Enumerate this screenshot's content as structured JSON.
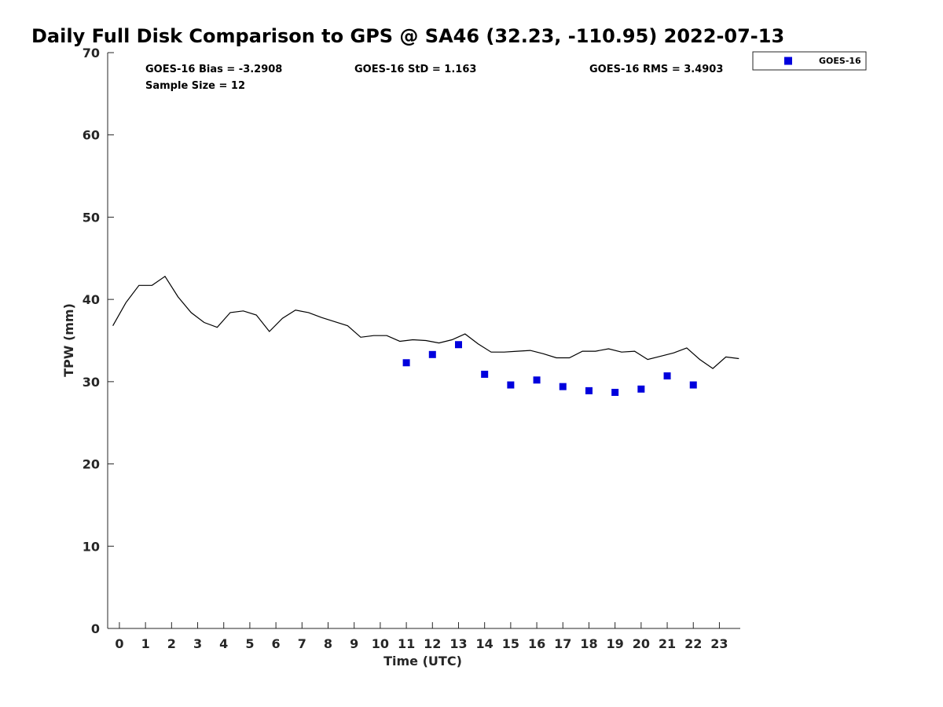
{
  "chart_data": {
    "type": "line",
    "title": "Daily Full Disk Comparison to GPS @ SA46 (32.23, -110.95) 2022-07-13",
    "xlabel": "Time (UTC)",
    "ylabel": "TPW (mm)",
    "xlim": [
      -0.45,
      23.8
    ],
    "ylim": [
      0,
      70
    ],
    "x_ticks": [
      "0",
      "1",
      "2",
      "3",
      "4",
      "5",
      "6",
      "7",
      "8",
      "9",
      "10",
      "11",
      "12",
      "13",
      "14",
      "15",
      "16",
      "17",
      "18",
      "19",
      "20",
      "21",
      "22",
      "23"
    ],
    "y_ticks": [
      "0",
      "10",
      "20",
      "30",
      "40",
      "50",
      "60",
      "70"
    ],
    "grid": false,
    "legend_position": "top-right, outside plot",
    "stats": {
      "bias": "GOES-16 Bias = -3.2908",
      "std": "GOES-16 StD = 1.163",
      "rms": "GOES-16 RMS = 3.4903",
      "sample": "Sample Size = 12"
    },
    "series": [
      {
        "style": "line",
        "color": "#000000",
        "x": [
          -0.25,
          0.25,
          0.75,
          1.25,
          1.75,
          2.25,
          2.75,
          3.25,
          3.75,
          4.25,
          4.75,
          5.25,
          5.75,
          6.25,
          6.75,
          7.25,
          7.75,
          8.25,
          8.75,
          9.25,
          9.75,
          10.25,
          10.75,
          11.25,
          11.75,
          12.25,
          12.75,
          13.25,
          13.75,
          14.25,
          14.75,
          15.25,
          15.75,
          16.25,
          16.75,
          17.25,
          17.75,
          18.25,
          18.75,
          19.25,
          19.75,
          20.25,
          20.75,
          21.25,
          21.75,
          22.25,
          22.75,
          23.25,
          23.75
        ],
        "values": [
          36.8,
          39.6,
          41.7,
          41.7,
          42.8,
          40.3,
          38.4,
          37.2,
          36.6,
          38.4,
          38.6,
          38.1,
          36.1,
          37.7,
          38.7,
          38.4,
          37.8,
          37.3,
          36.8,
          35.4,
          35.6,
          35.6,
          34.9,
          35.1,
          35.0,
          34.7,
          35.1,
          35.8,
          34.6,
          33.6,
          33.6,
          33.7,
          33.8,
          33.4,
          32.9,
          32.9,
          33.7,
          33.7,
          34.0,
          33.6,
          33.7,
          32.7,
          33.1,
          33.5,
          34.1,
          32.7,
          31.6,
          33.0,
          32.8
        ]
      },
      {
        "name": "GOES-16",
        "style": "markers",
        "color": "#0000dd",
        "x": [
          11,
          12,
          13,
          14,
          15,
          16,
          17,
          18,
          19,
          20,
          21,
          22
        ],
        "values": [
          32.3,
          33.3,
          34.5,
          30.9,
          29.6,
          30.2,
          29.4,
          28.9,
          28.7,
          29.1,
          30.7,
          29.6
        ]
      }
    ]
  }
}
